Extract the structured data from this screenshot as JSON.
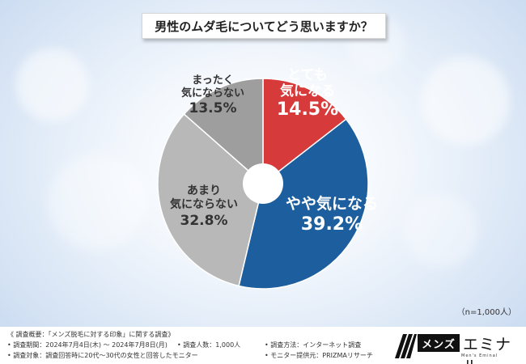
{
  "title": "男性のムダ毛についてどう思いますか？",
  "chart_data": {
    "type": "pie",
    "style": "donut",
    "slices": [
      {
        "label_lines": [
          "とても",
          "気になる"
        ],
        "value": 14.5,
        "value_text": "14.5%",
        "color": "#d63a3a",
        "label_color": "#ffffff"
      },
      {
        "label_lines": [
          "やや気になる"
        ],
        "value": 39.2,
        "value_text": "39.2%",
        "color": "#1d5f9e",
        "label_color": "#ffffff"
      },
      {
        "label_lines": [
          "あまり",
          "気にならない"
        ],
        "value": 32.8,
        "value_text": "32.8%",
        "color": "#b8b8b8",
        "label_color": "#333333"
      },
      {
        "label_lines": [
          "まったく",
          "気にならない"
        ],
        "value": 13.5,
        "value_text": "13.5%",
        "color": "#9e9e9e",
        "label_color": "#333333"
      }
    ]
  },
  "sample_note": "（n=1,000人）",
  "footer": {
    "heading": "《 調査概要：「メンズ脱毛に対する印象」に関する調査》",
    "rows": [
      [
        "• 調査期間：2024年7月4日(木) ～ 2024年7月8日(月)",
        "• 調査人数：1,000人",
        "• 調査方法：インターネット調査"
      ],
      [
        "• 調査対象：調査回答時に20代～30代の女性と回答したモニター",
        "",
        "• モニター提供元：PRIZMAリサーチ"
      ]
    ]
  },
  "logo": {
    "box_text": "メンズ",
    "main_text": "エミナル",
    "sub_text": "Men's Eminal"
  }
}
